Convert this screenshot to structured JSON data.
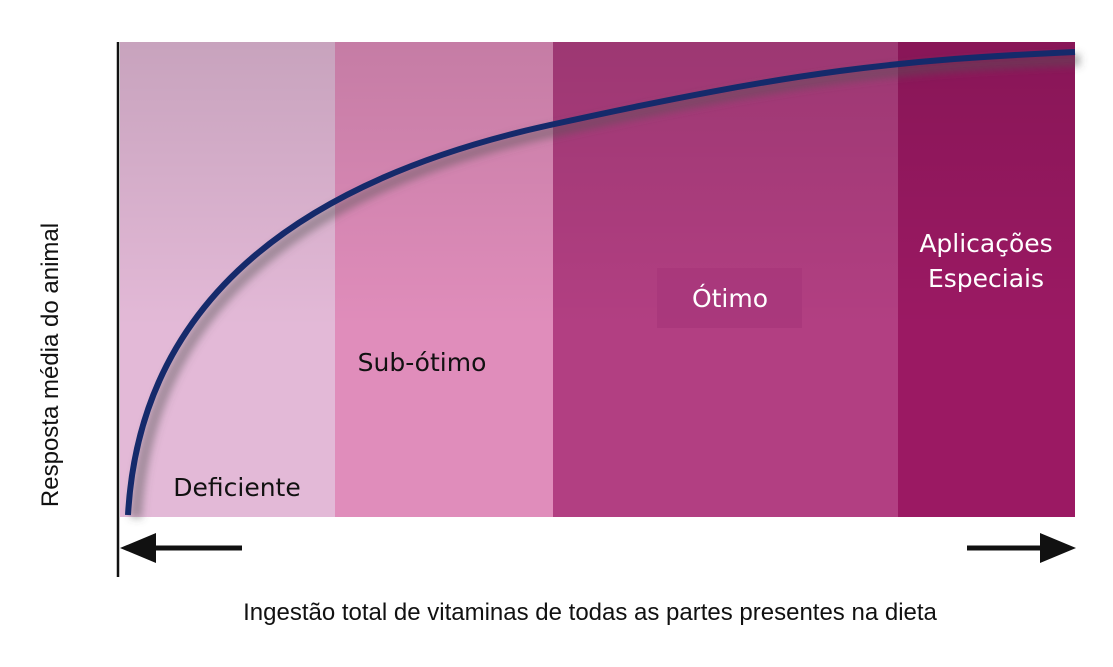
{
  "zones": [
    {
      "lines": [
        "Deficiente"
      ]
    },
    {
      "lines": [
        "Sub-ótimo"
      ]
    },
    {
      "lines": [
        "Ótimo"
      ]
    },
    {
      "lines": [
        "Aplicações",
        "Especiais"
      ]
    }
  ],
  "y_axis_label": "Resposta média do animal",
  "x_axis_label": "Ingestão total de vitaminas de todas as partes presentes na dieta"
}
